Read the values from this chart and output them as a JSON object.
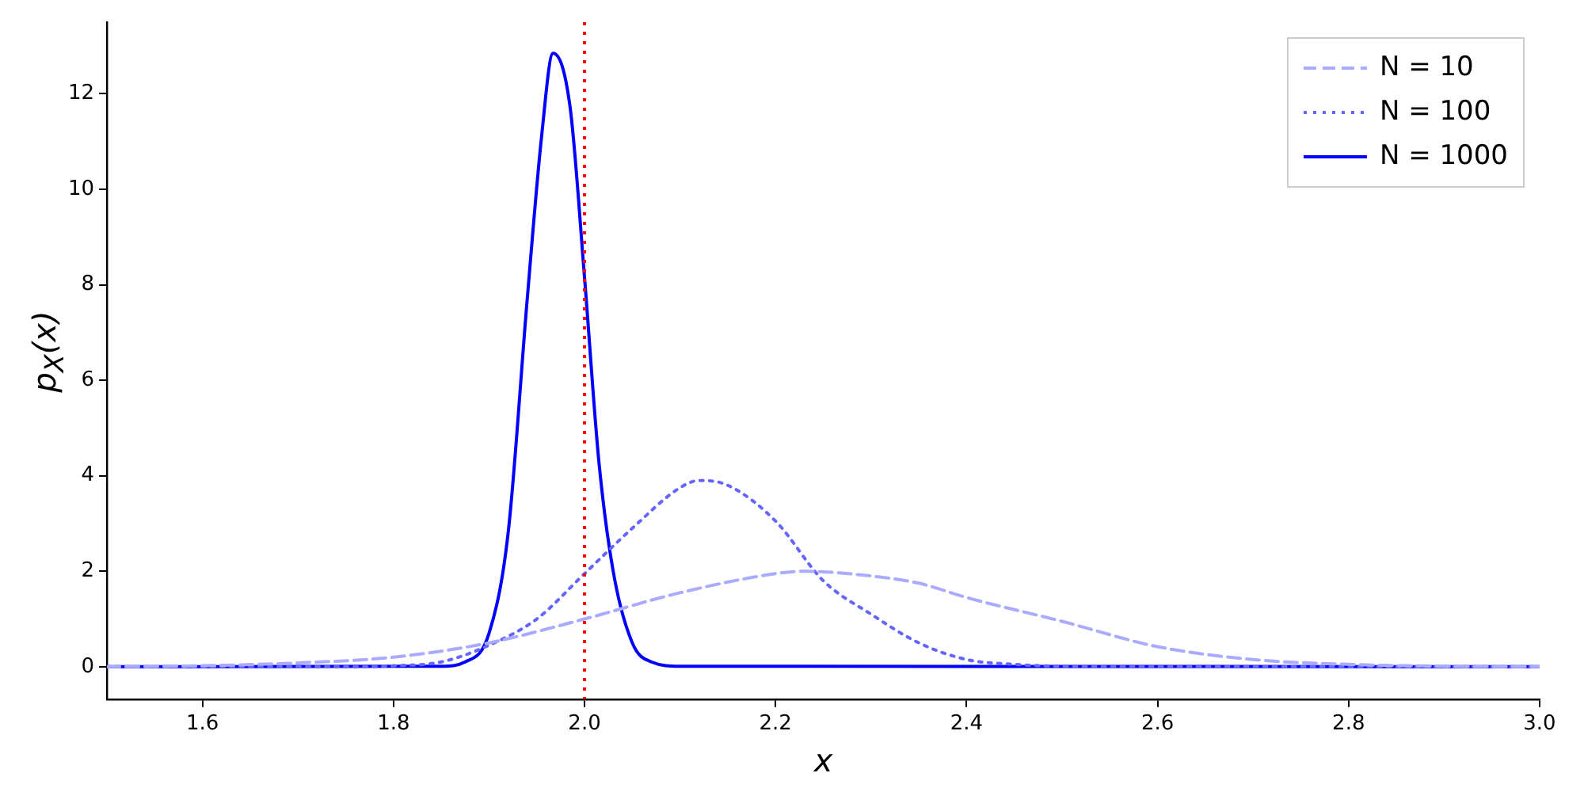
{
  "chart_data": {
    "type": "line",
    "xlabel": "x",
    "ylabel": "p$_{X}$(x)",
    "xlim": [
      1.5,
      3.0
    ],
    "xticks": [
      {
        "value": 1.6,
        "label": "1.6"
      },
      {
        "value": 1.8,
        "label": "1.8"
      },
      {
        "value": 2.0,
        "label": "2.0"
      },
      {
        "value": 2.2,
        "label": "2.2"
      },
      {
        "value": 2.4,
        "label": "2.4"
      },
      {
        "value": 2.6,
        "label": "2.6"
      },
      {
        "value": 2.8,
        "label": "2.8"
      },
      {
        "value": 3.0,
        "label": "3.0"
      }
    ],
    "ylim": [
      -0.68,
      13.5
    ],
    "yticks": [
      0,
      2,
      4,
      6,
      8,
      10,
      12
    ],
    "grid": false,
    "legend": "top right",
    "marker": "none",
    "ref_lines": [
      {
        "axis": "x",
        "value": 2.0,
        "color": "#ff0000",
        "line_style": "dotted"
      }
    ],
    "series": [
      {
        "name": "N = 10",
        "color": "#aaaaff",
        "line_style": "dashed",
        "x": [
          1.5,
          1.6,
          1.7,
          1.8,
          1.9,
          2.0,
          2.1,
          2.2,
          2.23,
          2.3,
          2.35,
          2.4,
          2.5,
          2.6,
          2.7,
          2.8,
          2.9,
          3.0
        ],
        "values": [
          0,
          0.02,
          0.08,
          0.2,
          0.5,
          1.0,
          1.55,
          1.95,
          2.0,
          1.9,
          1.75,
          1.45,
          0.95,
          0.42,
          0.15,
          0.05,
          0.01,
          0
        ]
      },
      {
        "name": "N = 100",
        "color": "#6666ff",
        "line_style": "dotted",
        "x": [
          1.5,
          1.75,
          1.8,
          1.85,
          1.9,
          1.95,
          2.0,
          2.05,
          2.1,
          2.12,
          2.15,
          2.2,
          2.25,
          2.3,
          2.35,
          2.4,
          2.45,
          2.5,
          2.6,
          3.0
        ],
        "values": [
          0,
          0,
          0.02,
          0.1,
          0.45,
          1.0,
          1.95,
          2.9,
          3.75,
          3.9,
          3.8,
          3.05,
          1.8,
          1.1,
          0.5,
          0.15,
          0.05,
          0.01,
          0,
          0
        ]
      },
      {
        "name": "N = 1000",
        "color": "#0000ff",
        "line_style": "solid",
        "x": [
          1.5,
          1.85,
          1.875,
          1.9,
          1.92,
          1.94,
          1.955,
          1.967,
          1.985,
          2.0,
          2.015,
          2.03,
          2.05,
          2.07,
          2.1,
          3.0
        ],
        "values": [
          0,
          0.01,
          0.1,
          0.7,
          2.8,
          7.7,
          11.1,
          12.85,
          11.7,
          8.15,
          4.3,
          2.0,
          0.5,
          0.1,
          0.01,
          0
        ]
      }
    ]
  }
}
